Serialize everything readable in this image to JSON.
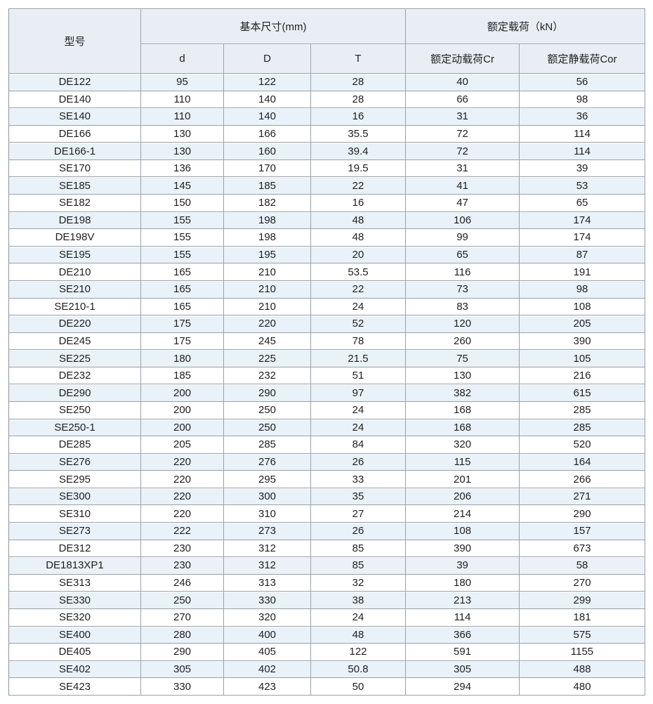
{
  "table": {
    "headers": {
      "model": "型号",
      "dims_group": "基本尺寸(mm)",
      "load_group": "额定载荷（kN）",
      "d": "d",
      "D": "D",
      "T": "T",
      "cr": "额定动载荷Cr",
      "cor": "额定静载荷Cor"
    },
    "rows": [
      {
        "model": "DE122",
        "d": "95",
        "D": "122",
        "T": "28",
        "cr": "40",
        "cor": "56"
      },
      {
        "model": "DE140",
        "d": "110",
        "D": "140",
        "T": "28",
        "cr": "66",
        "cor": "98"
      },
      {
        "model": "SE140",
        "d": "110",
        "D": "140",
        "T": "16",
        "cr": "31",
        "cor": "36"
      },
      {
        "model": "DE166",
        "d": "130",
        "D": "166",
        "T": "35.5",
        "cr": "72",
        "cor": "114"
      },
      {
        "model": "DE166-1",
        "d": "130",
        "D": "160",
        "T": "39.4",
        "cr": "72",
        "cor": "114"
      },
      {
        "model": "SE170",
        "d": "136",
        "D": "170",
        "T": "19.5",
        "cr": "31",
        "cor": "39"
      },
      {
        "model": "SE185",
        "d": "145",
        "D": "185",
        "T": "22",
        "cr": "41",
        "cor": "53"
      },
      {
        "model": "SE182",
        "d": "150",
        "D": "182",
        "T": "16",
        "cr": "47",
        "cor": "65"
      },
      {
        "model": "DE198",
        "d": "155",
        "D": "198",
        "T": "48",
        "cr": "106",
        "cor": "174"
      },
      {
        "model": "DE198V",
        "d": "155",
        "D": "198",
        "T": "48",
        "cr": "99",
        "cor": "174"
      },
      {
        "model": "SE195",
        "d": "155",
        "D": "195",
        "T": "20",
        "cr": "65",
        "cor": "87"
      },
      {
        "model": "DE210",
        "d": "165",
        "D": "210",
        "T": "53.5",
        "cr": "116",
        "cor": "191"
      },
      {
        "model": "SE210",
        "d": "165",
        "D": "210",
        "T": "22",
        "cr": "73",
        "cor": "98"
      },
      {
        "model": "SE210-1",
        "d": "165",
        "D": "210",
        "T": "24",
        "cr": "83",
        "cor": "108"
      },
      {
        "model": "DE220",
        "d": "175",
        "D": "220",
        "T": "52",
        "cr": "120",
        "cor": "205"
      },
      {
        "model": "DE245",
        "d": "175",
        "D": "245",
        "T": "78",
        "cr": "260",
        "cor": "390"
      },
      {
        "model": "SE225",
        "d": "180",
        "D": "225",
        "T": "21.5",
        "cr": "75",
        "cor": "105"
      },
      {
        "model": "DE232",
        "d": "185",
        "D": "232",
        "T": "51",
        "cr": "130",
        "cor": "216"
      },
      {
        "model": "DE290",
        "d": "200",
        "D": "290",
        "T": "97",
        "cr": "382",
        "cor": "615"
      },
      {
        "model": "SE250",
        "d": "200",
        "D": "250",
        "T": "24",
        "cr": "168",
        "cor": "285"
      },
      {
        "model": "SE250-1",
        "d": "200",
        "D": "250",
        "T": "24",
        "cr": "168",
        "cor": "285"
      },
      {
        "model": "DE285",
        "d": "205",
        "D": "285",
        "T": "84",
        "cr": "320",
        "cor": "520"
      },
      {
        "model": "SE276",
        "d": "220",
        "D": "276",
        "T": "26",
        "cr": "115",
        "cor": "164"
      },
      {
        "model": "SE295",
        "d": "220",
        "D": "295",
        "T": "33",
        "cr": "201",
        "cor": "266"
      },
      {
        "model": "SE300",
        "d": "220",
        "D": "300",
        "T": "35",
        "cr": "206",
        "cor": "271"
      },
      {
        "model": "SE310",
        "d": "220",
        "D": "310",
        "T": "27",
        "cr": "214",
        "cor": "290"
      },
      {
        "model": "SE273",
        "d": "222",
        "D": "273",
        "T": "26",
        "cr": "108",
        "cor": "157"
      },
      {
        "model": "DE312",
        "d": "230",
        "D": "312",
        "T": "85",
        "cr": "390",
        "cor": "673"
      },
      {
        "model": "DE1813XP1",
        "d": "230",
        "D": "312",
        "T": "85",
        "cr": "39",
        "cor": "58"
      },
      {
        "model": "SE313",
        "d": "246",
        "D": "313",
        "T": "32",
        "cr": "180",
        "cor": "270"
      },
      {
        "model": "SE330",
        "d": "250",
        "D": "330",
        "T": "38",
        "cr": "213",
        "cor": "299"
      },
      {
        "model": "SE320",
        "d": "270",
        "D": "320",
        "T": "24",
        "cr": "114",
        "cor": "181"
      },
      {
        "model": "SE400",
        "d": "280",
        "D": "400",
        "T": "48",
        "cr": "366",
        "cor": "575"
      },
      {
        "model": "DE405",
        "d": "290",
        "D": "405",
        "T": "122",
        "cr": "591",
        "cor": "1155"
      },
      {
        "model": "SE402",
        "d": "305",
        "D": "402",
        "T": "50.8",
        "cr": "305",
        "cor": "488"
      },
      {
        "model": "SE423",
        "d": "330",
        "D": "423",
        "T": "50",
        "cr": "294",
        "cor": "480"
      }
    ]
  },
  "colors": {
    "header_bg": "#e9eef5",
    "row_alt_bg": "#e9f1f9",
    "row_bg": "#ffffff",
    "border": "#9aa1a8",
    "text": "#1f1f1f"
  }
}
